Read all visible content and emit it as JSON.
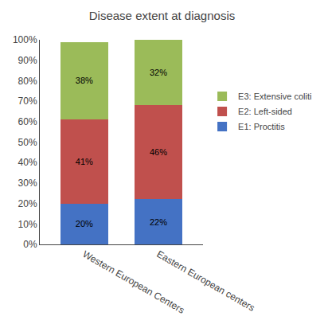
{
  "chart_data": {
    "type": "bar",
    "stacked": true,
    "title": "Disease extent at diagnosis",
    "categories": [
      "Western European Centers",
      "Eastern European centers"
    ],
    "series": [
      {
        "name": "E1: Proctitis",
        "color": "#4472C4",
        "values": [
          20,
          22
        ],
        "value_labels": [
          "20%",
          "22%"
        ]
      },
      {
        "name": "E2: Left-sided",
        "color": "#C0504D",
        "values": [
          41,
          46
        ],
        "value_labels": [
          "41%",
          "46%"
        ]
      },
      {
        "name": "E3: Extensive coliti",
        "color": "#9BBB59",
        "values": [
          38,
          32
        ],
        "value_labels": [
          "38%",
          "32%"
        ]
      }
    ],
    "ylim": [
      0,
      100
    ],
    "yticks": [
      {
        "value": 0,
        "label": "0%"
      },
      {
        "value": 10,
        "label": "10%"
      },
      {
        "value": 20,
        "label": "20%"
      },
      {
        "value": 30,
        "label": "30%"
      },
      {
        "value": 40,
        "label": "40%"
      },
      {
        "value": 50,
        "label": "50%"
      },
      {
        "value": 60,
        "label": "60%"
      },
      {
        "value": 70,
        "label": "70%"
      },
      {
        "value": 80,
        "label": "80%"
      },
      {
        "value": 90,
        "label": "90%"
      },
      {
        "value": 100,
        "label": "100%"
      }
    ],
    "grid": false,
    "legend": "right",
    "data_labels": true
  }
}
